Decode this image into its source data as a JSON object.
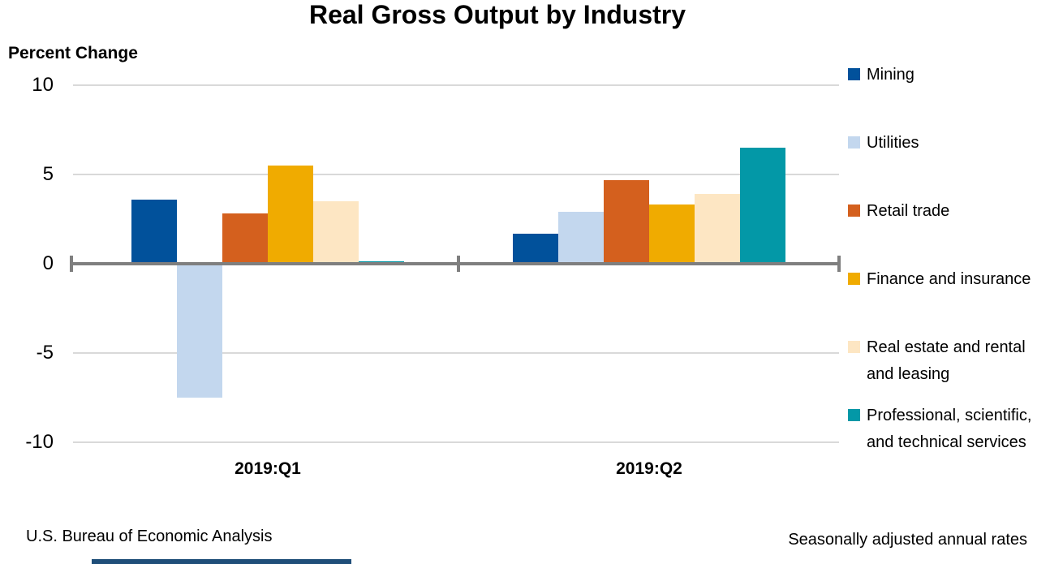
{
  "title": "Real Gross Output by Industry",
  "y_axis_label": "Percent Change",
  "footer_left": "U.S. Bureau of Economic Analysis",
  "footer_right": "Seasonally adjusted annual rates",
  "accent_bar_color": "#1f4e79",
  "chart_data": {
    "type": "bar",
    "title": "Real Gross Output by Industry",
    "ylabel": "Percent Change",
    "categories": [
      "2019:Q1",
      "2019:Q2"
    ],
    "series": [
      {
        "name": "Mining",
        "color": "#01519b",
        "values": [
          3.6,
          1.7
        ],
        "label_lines": [
          "Mining"
        ]
      },
      {
        "name": "Utilities",
        "color": "#c3d7ee",
        "values": [
          -7.5,
          2.9
        ],
        "label_lines": [
          "Utilities"
        ]
      },
      {
        "name": "Retail trade",
        "color": "#d4601e",
        "values": [
          2.8,
          4.7
        ],
        "label_lines": [
          "Retail trade"
        ]
      },
      {
        "name": "Finance and insurance",
        "color": "#f0ab00",
        "values": [
          5.5,
          3.3
        ],
        "label_lines": [
          "Finance and insurance"
        ]
      },
      {
        "name": "Real estate and rental and leasing",
        "color": "#fde6c3",
        "values": [
          3.5,
          3.9
        ],
        "label_lines": [
          "Real estate and rental",
          "and leasing"
        ]
      },
      {
        "name": "Professional, scientific, and technical services",
        "color": "#0398a7",
        "values": [
          0.15,
          6.5
        ],
        "label_lines": [
          "Professional, scientific,",
          "and technical services"
        ]
      }
    ],
    "ylim": [
      -10,
      10
    ],
    "yticks": [
      10,
      5,
      0,
      -5,
      -10
    ],
    "grid": true,
    "legend_position": "right"
  }
}
